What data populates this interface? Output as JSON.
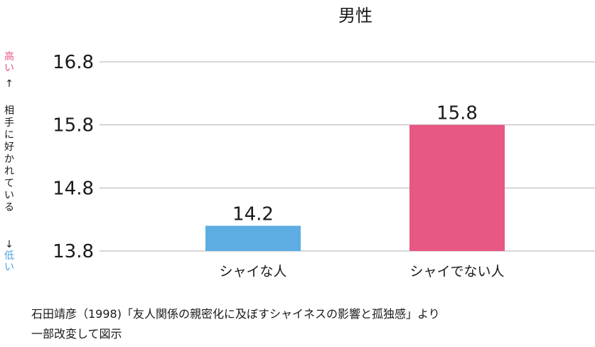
{
  "chart_data": {
    "type": "bar",
    "title": "男性",
    "categories": [
      "シャイな人",
      "シャイでない人"
    ],
    "values": [
      14.2,
      15.8
    ],
    "data_labels": [
      "14.2",
      "15.8"
    ],
    "colors": [
      "#5dade2",
      "#e75883"
    ],
    "y_ticks": [
      "13.8",
      "14.8",
      "15.8",
      "16.8"
    ],
    "ylim": [
      13.8,
      16.8
    ],
    "grid": true,
    "ylabel": {
      "high": "高い",
      "arrow_up": "↑",
      "middle": "相手に好かれている",
      "arrow_down": "↓",
      "low": "低い",
      "high_color": "#e8577f",
      "low_color": "#4aa3df"
    }
  },
  "source": {
    "line1": "石田靖彦（1998)「友人関係の親密化に及ぼすシャイネスの影響と孤独感」より",
    "line2": "一部改変して図示"
  }
}
